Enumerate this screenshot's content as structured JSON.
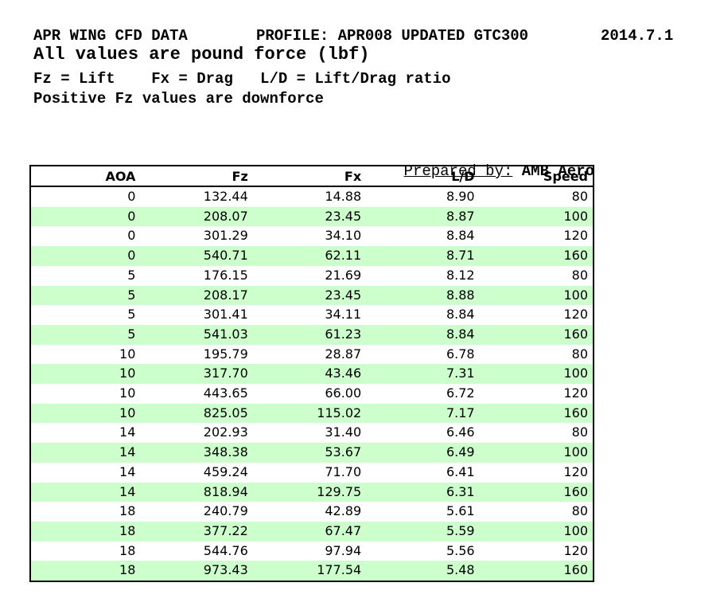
{
  "header": {
    "title": "APR WING CFD DATA",
    "profile": "PROFILE: APR008 UPDATED GTC300",
    "date": "2014.7.1",
    "subtitle": "All values are pound force (lbf)",
    "legend": "Fz = Lift    Fx = Drag   L/D = Lift/Drag ratio",
    "note": "Positive Fz values are downforce"
  },
  "prepared_by": {
    "label": "Prepared by:",
    "value": "AMB Aero"
  },
  "table": {
    "columns": [
      "AOA",
      "Fz",
      "Fx",
      "L/D",
      "Speed"
    ],
    "rows": [
      [
        "0",
        "132.44",
        "14.88",
        "8.90",
        "80"
      ],
      [
        "0",
        "208.07",
        "23.45",
        "8.87",
        "100"
      ],
      [
        "0",
        "301.29",
        "34.10",
        "8.84",
        "120"
      ],
      [
        "0",
        "540.71",
        "62.11",
        "8.71",
        "160"
      ],
      [
        "5",
        "176.15",
        "21.69",
        "8.12",
        "80"
      ],
      [
        "5",
        "208.17",
        "23.45",
        "8.88",
        "100"
      ],
      [
        "5",
        "301.41",
        "34.11",
        "8.84",
        "120"
      ],
      [
        "5",
        "541.03",
        "61.23",
        "8.84",
        "160"
      ],
      [
        "10",
        "195.79",
        "28.87",
        "6.78",
        "80"
      ],
      [
        "10",
        "317.70",
        "43.46",
        "7.31",
        "100"
      ],
      [
        "10",
        "443.65",
        "66.00",
        "6.72",
        "120"
      ],
      [
        "10",
        "825.05",
        "115.02",
        "7.17",
        "160"
      ],
      [
        "14",
        "202.93",
        "31.40",
        "6.46",
        "80"
      ],
      [
        "14",
        "348.38",
        "53.67",
        "6.49",
        "100"
      ],
      [
        "14",
        "459.24",
        "71.70",
        "6.41",
        "120"
      ],
      [
        "14",
        "818.94",
        "129.75",
        "6.31",
        "160"
      ],
      [
        "18",
        "240.79",
        "42.89",
        "5.61",
        "80"
      ],
      [
        "18",
        "377.22",
        "67.47",
        "5.59",
        "100"
      ],
      [
        "18",
        "544.76",
        "97.94",
        "5.56",
        "120"
      ],
      [
        "18",
        "973.43",
        "177.54",
        "5.48",
        "160"
      ]
    ]
  },
  "colors": {
    "row_stripe": "#ccffcc",
    "border": "#000000",
    "text": "#000000"
  },
  "chart_data": {
    "type": "table",
    "title": "APR WING CFD DATA",
    "subtitle": "All values are pound force (lbf)",
    "profile": "APR008 UPDATED GTC300",
    "version": "2014.7.1",
    "prepared_by": "AMB Aero",
    "notes": [
      "Fz = Lift",
      "Fx = Drag",
      "L/D = Lift/Drag ratio",
      "Positive Fz values are downforce"
    ],
    "columns": [
      "AOA",
      "Fz",
      "Fx",
      "L/D",
      "Speed"
    ],
    "rows": [
      [
        0,
        132.44,
        14.88,
        8.9,
        80
      ],
      [
        0,
        208.07,
        23.45,
        8.87,
        100
      ],
      [
        0,
        301.29,
        34.1,
        8.84,
        120
      ],
      [
        0,
        540.71,
        62.11,
        8.71,
        160
      ],
      [
        5,
        176.15,
        21.69,
        8.12,
        80
      ],
      [
        5,
        208.17,
        23.45,
        8.88,
        100
      ],
      [
        5,
        301.41,
        34.11,
        8.84,
        120
      ],
      [
        5,
        541.03,
        61.23,
        8.84,
        160
      ],
      [
        10,
        195.79,
        28.87,
        6.78,
        80
      ],
      [
        10,
        317.7,
        43.46,
        7.31,
        100
      ],
      [
        10,
        443.65,
        66.0,
        6.72,
        120
      ],
      [
        10,
        825.05,
        115.02,
        7.17,
        160
      ],
      [
        14,
        202.93,
        31.4,
        6.46,
        80
      ],
      [
        14,
        348.38,
        53.67,
        6.49,
        100
      ],
      [
        14,
        459.24,
        71.7,
        6.41,
        120
      ],
      [
        14,
        818.94,
        129.75,
        6.31,
        160
      ],
      [
        18,
        240.79,
        42.89,
        5.61,
        80
      ],
      [
        18,
        377.22,
        67.47,
        5.59,
        100
      ],
      [
        18,
        544.76,
        97.94,
        5.56,
        120
      ],
      [
        18,
        973.43,
        177.54,
        5.48,
        160
      ]
    ]
  }
}
